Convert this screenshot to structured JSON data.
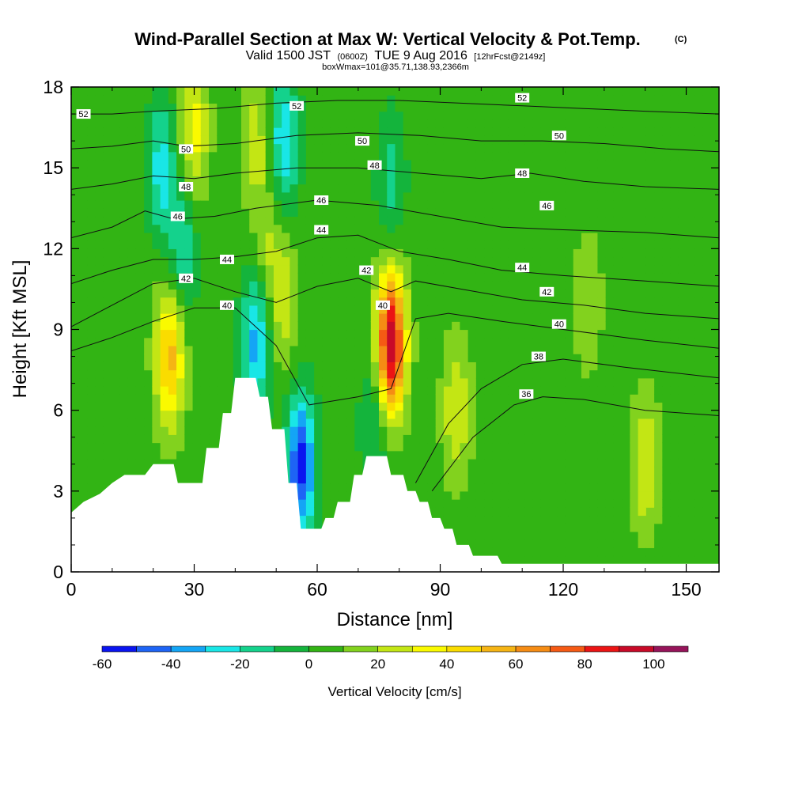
{
  "header": {
    "title": "Wind-Parallel Section at Max W: Vertical Velocity & Pot.Temp.",
    "copyright": "(C)",
    "valid_prefix": "Valid 1500 JST",
    "valid_utc": "(0600Z)",
    "valid_date": "TUE 9 Aug 2016",
    "forecast_info": "[12hrFcst@2149z]",
    "box_info": "boxWmax=101@35.71,138.93,2366m"
  },
  "colorbar": {
    "title": "Vertical Velocity [cm/s]",
    "bounds": [
      -60,
      -50,
      -40,
      -30,
      -20,
      -10,
      0,
      10,
      20,
      30,
      40,
      50,
      60,
      70,
      80,
      90,
      100,
      110
    ],
    "colors": [
      "#0a14f0",
      "#1e64f5",
      "#14a5f5",
      "#19e6e6",
      "#14d28c",
      "#14b43c",
      "#32b414",
      "#82d21e",
      "#c3e614",
      "#fafa00",
      "#fadc00",
      "#f5b414",
      "#f58c14",
      "#f55a14",
      "#eb1414",
      "#c80a28",
      "#96145a",
      "#5a0a8c"
    ],
    "tick_values": [
      -60,
      -40,
      -20,
      0,
      20,
      40,
      60,
      80,
      100
    ],
    "tick_labels": [
      "-60",
      "-40",
      "-20",
      "0",
      "20",
      "40",
      "60",
      "80",
      "100"
    ]
  },
  "chart_data": {
    "type": "heatmap",
    "title": "Wind-Parallel Section at Max W: Vertical Velocity & Pot.Temp.",
    "xlabel": "Distance [nm]",
    "ylabel": "Height [Kft MSL]",
    "xlim": [
      0,
      158
    ],
    "ylim": [
      0,
      18
    ],
    "x_ticks": [
      0,
      30,
      60,
      90,
      120,
      150
    ],
    "x_tick_labels": [
      "0",
      "30",
      "60",
      "90",
      "120",
      "150"
    ],
    "y_ticks": [
      0,
      3,
      6,
      9,
      12,
      15,
      18
    ],
    "y_tick_labels": [
      "0",
      "3",
      "6",
      "9",
      "12",
      "15",
      "18"
    ],
    "background_w_cms": 5,
    "w_features": [
      {
        "x": 24,
        "y": 8,
        "value": 55
      },
      {
        "x": 30,
        "y": 16.5,
        "value": 35
      },
      {
        "x": 45,
        "y": 16,
        "value": 25
      },
      {
        "x": 48,
        "y": 12,
        "value": 20
      },
      {
        "x": 52,
        "y": 10,
        "value": 25
      },
      {
        "x": 22,
        "y": 15,
        "value": -25
      },
      {
        "x": 27,
        "y": 12,
        "value": -20
      },
      {
        "x": 45,
        "y": 8.5,
        "value": -35
      },
      {
        "x": 56,
        "y": 4,
        "value": -55
      },
      {
        "x": 52,
        "y": 16,
        "value": -30
      },
      {
        "x": 78,
        "y": 8.5,
        "value": 101
      },
      {
        "x": 74,
        "y": 5.5,
        "value": -15
      },
      {
        "x": 78,
        "y": 14.5,
        "value": -15
      },
      {
        "x": 94,
        "y": 6,
        "value": 30
      },
      {
        "x": 140,
        "y": 4,
        "value": 30
      },
      {
        "x": 126,
        "y": 10,
        "value": 20
      }
    ],
    "terrain_profile_kft": [
      [
        0,
        2.2
      ],
      [
        3,
        2.6
      ],
      [
        7,
        2.9
      ],
      [
        10,
        3.3
      ],
      [
        13,
        3.6
      ],
      [
        18,
        3.6
      ],
      [
        20,
        4.0
      ],
      [
        25,
        4.0
      ],
      [
        26,
        3.3
      ],
      [
        32,
        3.3
      ],
      [
        33,
        4.6
      ],
      [
        36,
        4.6
      ],
      [
        37,
        5.9
      ],
      [
        39,
        5.9
      ],
      [
        40,
        7.2
      ],
      [
        42,
        7.2
      ],
      [
        43,
        7.2
      ],
      [
        45,
        7.2
      ],
      [
        46,
        6.5
      ],
      [
        48,
        6.5
      ],
      [
        49,
        5.3
      ],
      [
        52,
        5.3
      ],
      [
        53,
        3.3
      ],
      [
        55,
        3.3
      ],
      [
        56,
        1.6
      ],
      [
        61,
        1.6
      ],
      [
        62,
        2.0
      ],
      [
        64,
        2.0
      ],
      [
        65,
        2.6
      ],
      [
        68,
        2.6
      ],
      [
        69,
        3.6
      ],
      [
        71,
        3.6
      ],
      [
        72,
        4.3
      ],
      [
        77,
        4.3
      ],
      [
        78,
        3.6
      ],
      [
        81,
        3.6
      ],
      [
        82,
        3.0
      ],
      [
        84,
        3.0
      ],
      [
        85,
        2.6
      ],
      [
        87,
        2.6
      ],
      [
        88,
        2.0
      ],
      [
        90,
        2.0
      ],
      [
        91,
        1.6
      ],
      [
        93,
        1.6
      ],
      [
        94,
        1.0
      ],
      [
        97,
        1.0
      ],
      [
        98,
        0.6
      ],
      [
        104,
        0.6
      ],
      [
        105,
        0.3
      ],
      [
        158,
        0.3
      ]
    ],
    "isentropes": [
      {
        "theta": 36,
        "points": [
          [
            88,
            3.0
          ],
          [
            98,
            5.0
          ],
          [
            108,
            6.2
          ],
          [
            115,
            6.5
          ],
          [
            125,
            6.4
          ],
          [
            140,
            6.0
          ],
          [
            158,
            5.8
          ]
        ]
      },
      {
        "theta": 38,
        "points": [
          [
            84,
            3.3
          ],
          [
            92,
            5.5
          ],
          [
            100,
            6.8
          ],
          [
            110,
            7.7
          ],
          [
            120,
            7.9
          ],
          [
            135,
            7.6
          ],
          [
            158,
            7.2
          ]
        ]
      },
      {
        "theta": 40,
        "points": [
          [
            0,
            8.2
          ],
          [
            10,
            8.7
          ],
          [
            20,
            9.3
          ],
          [
            30,
            9.8
          ],
          [
            40,
            9.8
          ],
          [
            50,
            8.4
          ],
          [
            58,
            6.2
          ],
          [
            70,
            6.5
          ],
          [
            78,
            6.8
          ],
          [
            84,
            9.4
          ],
          [
            92,
            9.6
          ],
          [
            105,
            9.3
          ],
          [
            120,
            9.0
          ],
          [
            140,
            8.6
          ],
          [
            158,
            8.3
          ]
        ]
      },
      {
        "theta": 42,
        "points": [
          [
            0,
            9.1
          ],
          [
            10,
            9.9
          ],
          [
            20,
            10.7
          ],
          [
            30,
            10.9
          ],
          [
            40,
            10.4
          ],
          [
            50,
            10.0
          ],
          [
            60,
            10.6
          ],
          [
            70,
            10.9
          ],
          [
            78,
            10.4
          ],
          [
            84,
            10.8
          ],
          [
            95,
            10.5
          ],
          [
            110,
            10.1
          ],
          [
            125,
            9.9
          ],
          [
            140,
            9.6
          ],
          [
            158,
            9.4
          ]
        ]
      },
      {
        "theta": 44,
        "points": [
          [
            0,
            10.7
          ],
          [
            10,
            11.2
          ],
          [
            20,
            11.6
          ],
          [
            30,
            11.6
          ],
          [
            40,
            11.7
          ],
          [
            50,
            11.9
          ],
          [
            60,
            12.4
          ],
          [
            70,
            12.5
          ],
          [
            80,
            11.9
          ],
          [
            92,
            11.6
          ],
          [
            105,
            11.2
          ],
          [
            120,
            11.0
          ],
          [
            140,
            10.8
          ],
          [
            158,
            10.6
          ]
        ]
      },
      {
        "theta": 46,
        "points": [
          [
            0,
            12.4
          ],
          [
            10,
            12.8
          ],
          [
            18,
            13.4
          ],
          [
            25,
            13.1
          ],
          [
            35,
            13.2
          ],
          [
            45,
            13.5
          ],
          [
            60,
            13.8
          ],
          [
            75,
            13.6
          ],
          [
            90,
            13.2
          ],
          [
            105,
            12.8
          ],
          [
            120,
            12.7
          ],
          [
            140,
            12.6
          ],
          [
            158,
            12.4
          ]
        ]
      },
      {
        "theta": 48,
        "points": [
          [
            0,
            14.2
          ],
          [
            10,
            14.4
          ],
          [
            20,
            14.7
          ],
          [
            30,
            14.6
          ],
          [
            40,
            14.8
          ],
          [
            55,
            15.0
          ],
          [
            70,
            15.0
          ],
          [
            85,
            14.8
          ],
          [
            100,
            14.6
          ],
          [
            112,
            14.8
          ],
          [
            125,
            14.5
          ],
          [
            140,
            14.3
          ],
          [
            158,
            14.2
          ]
        ]
      },
      {
        "theta": 50,
        "points": [
          [
            0,
            15.7
          ],
          [
            10,
            15.8
          ],
          [
            20,
            16.0
          ],
          [
            28,
            15.8
          ],
          [
            40,
            15.9
          ],
          [
            55,
            16.2
          ],
          [
            70,
            16.3
          ],
          [
            85,
            16.2
          ],
          [
            100,
            16.0
          ],
          [
            115,
            16.0
          ],
          [
            130,
            15.9
          ],
          [
            145,
            15.7
          ],
          [
            158,
            15.6
          ]
        ]
      },
      {
        "theta": 52,
        "points": [
          [
            0,
            17.0
          ],
          [
            10,
            17.0
          ],
          [
            20,
            17.1
          ],
          [
            35,
            17.2
          ],
          [
            50,
            17.4
          ],
          [
            65,
            17.5
          ],
          [
            80,
            17.5
          ],
          [
            95,
            17.4
          ],
          [
            110,
            17.3
          ],
          [
            125,
            17.2
          ],
          [
            140,
            17.1
          ],
          [
            158,
            17.0
          ]
        ]
      }
    ],
    "isentrope_labels": [
      {
        "theta": 52,
        "text": "52",
        "x": 3,
        "y": 17.0
      },
      {
        "theta": 52,
        "text": "52",
        "x": 55,
        "y": 17.3
      },
      {
        "theta": 52,
        "text": "52",
        "x": 110,
        "y": 17.6
      },
      {
        "theta": 50,
        "text": "50",
        "x": 28,
        "y": 15.7
      },
      {
        "theta": 50,
        "text": "50",
        "x": 71,
        "y": 16.0
      },
      {
        "theta": 50,
        "text": "50",
        "x": 119,
        "y": 16.2
      },
      {
        "theta": 48,
        "text": "48",
        "x": 28,
        "y": 14.3
      },
      {
        "theta": 48,
        "text": "48",
        "x": 74,
        "y": 15.1
      },
      {
        "theta": 48,
        "text": "48",
        "x": 110,
        "y": 14.8
      },
      {
        "theta": 46,
        "text": "46",
        "x": 26,
        "y": 13.2
      },
      {
        "theta": 46,
        "text": "46",
        "x": 61,
        "y": 13.8
      },
      {
        "theta": 46,
        "text": "46",
        "x": 116,
        "y": 13.6
      },
      {
        "theta": 44,
        "text": "44",
        "x": 38,
        "y": 11.6
      },
      {
        "theta": 44,
        "text": "44",
        "x": 61,
        "y": 12.7
      },
      {
        "theta": 44,
        "text": "44",
        "x": 110,
        "y": 11.3
      },
      {
        "theta": 42,
        "text": "42",
        "x": 28,
        "y": 10.9
      },
      {
        "theta": 42,
        "text": "42",
        "x": 72,
        "y": 11.2
      },
      {
        "theta": 42,
        "text": "42",
        "x": 116,
        "y": 10.4
      },
      {
        "theta": 40,
        "text": "40",
        "x": 38,
        "y": 9.9
      },
      {
        "theta": 40,
        "text": "40",
        "x": 76,
        "y": 9.9
      },
      {
        "theta": 40,
        "text": "40",
        "x": 119,
        "y": 9.2
      },
      {
        "theta": 38,
        "text": "38",
        "x": 114,
        "y": 8.0
      },
      {
        "theta": 36,
        "text": "36",
        "x": 111,
        "y": 6.6
      }
    ]
  }
}
